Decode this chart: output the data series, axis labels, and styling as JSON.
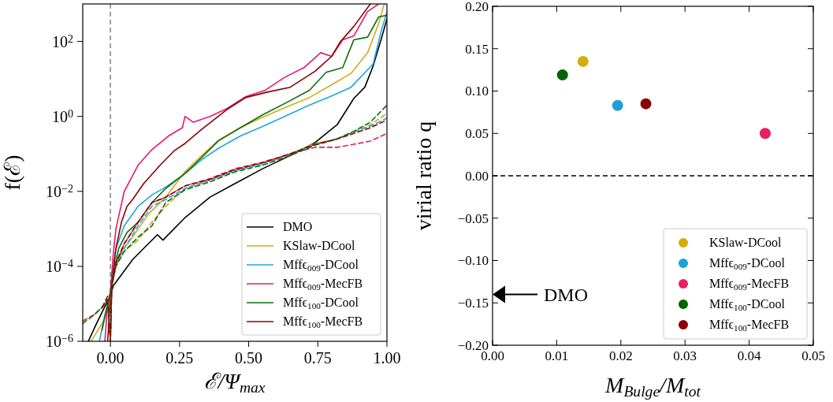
{
  "chart_data": [
    {
      "type": "line",
      "xlabel": "ℰ/Ψ$_{max}$",
      "ylabel": "f(ℰ)",
      "xlim": [
        -0.1,
        1.0
      ],
      "ylim": [
        1e-06,
        1000
      ],
      "log": "y",
      "legend": "bottom right",
      "grid": false,
      "xticks": [
        {
          "value": 0,
          "label": "0.00"
        },
        {
          "value": 0.25,
          "label": "0.25"
        },
        {
          "value": 0.5,
          "label": "0.50"
        },
        {
          "value": 0.75,
          "label": "0.75"
        },
        {
          "value": 1,
          "label": "1.00"
        }
      ],
      "yticks": [
        {
          "value": 1e-06,
          "label": "10$^{−6}$"
        },
        {
          "value": 0.0001,
          "label": "10$^{−4}$"
        },
        {
          "value": 0.01,
          "label": "10$^{−2}$"
        },
        {
          "value": 1,
          "label": "10$^{0}$"
        },
        {
          "value": 100,
          "label": "10$^{2}$"
        }
      ],
      "ref_lines": [
        {
          "axis": "x",
          "value": 0,
          "color": "#808080",
          "line_style": "dashed"
        }
      ],
      "series": [
        {
          "name": "DMO",
          "color": "#000000",
          "x": [
            -0.08,
            -0.05,
            -0.01,
            0.0,
            0.01,
            0.04,
            0.08,
            0.12,
            0.17,
            0.19,
            0.27,
            0.36,
            0.45,
            0.55,
            0.65,
            0.74,
            0.82,
            0.88,
            0.92,
            0.95,
            0.98,
            1.0
          ],
          "values": [
            1e-06,
            3e-06,
            1.2e-05,
            1.5e-05,
            3e-05,
            6e-05,
            0.00015,
            0.0003,
            0.0007,
            0.0005,
            0.002,
            0.007,
            0.016,
            0.04,
            0.09,
            0.2,
            0.6,
            3,
            6,
            22,
            120,
            400
          ]
        },
        {
          "name": "KSlaw-DCool",
          "color": "#d4aa1e",
          "x": [
            -0.07,
            -0.03,
            -0.005,
            0.0,
            0.01,
            0.04,
            0.08,
            0.14,
            0.2,
            0.27,
            0.33,
            0.39,
            0.47,
            0.55,
            0.63,
            0.72,
            0.8,
            0.87,
            0.93,
            0.97,
            0.99
          ],
          "values": [
            1e-06,
            3e-06,
            8e-06,
            2e-05,
            6e-05,
            0.00025,
            0.0006,
            0.0026,
            0.007,
            0.034,
            0.09,
            0.23,
            0.5,
            0.95,
            1.7,
            3.2,
            7,
            14,
            50,
            300,
            1000
          ]
        },
        {
          "name": "Mffϵ$_{009}$-DCool",
          "color": "#1ea8d8",
          "x": [
            -0.04,
            -0.02,
            0.0,
            0.005,
            0.02,
            0.05,
            0.1,
            0.15,
            0.2,
            0.27,
            0.33,
            0.39,
            0.47,
            0.55,
            0.63,
            0.72,
            0.8,
            0.87,
            0.95,
            0.98,
            1.0
          ],
          "values": [
            1e-06,
            5e-06,
            2e-05,
            5e-05,
            0.0003,
            0.0012,
            0.004,
            0.008,
            0.013,
            0.03,
            0.07,
            0.14,
            0.3,
            0.54,
            1.0,
            2,
            3.5,
            6,
            25,
            200,
            600
          ]
        },
        {
          "name": "Mffϵ$_{009}$-MecFB",
          "color": "#e6196a",
          "x": [
            -0.02,
            -0.01,
            0.0,
            0.01,
            0.02,
            0.05,
            0.1,
            0.15,
            0.21,
            0.26,
            0.27,
            0.3,
            0.36,
            0.42,
            0.49,
            0.56,
            0.63,
            0.7,
            0.76,
            0.8,
            0.84,
            0.88,
            0.93,
            0.97
          ],
          "values": [
            1e-06,
            1e-05,
            2e-05,
            0.0002,
            0.001,
            0.01,
            0.05,
            0.13,
            0.3,
            0.5,
            1.0,
            0.7,
            1.0,
            1.6,
            3.4,
            5,
            11,
            20,
            50,
            40,
            110,
            140,
            630,
            1000
          ]
        },
        {
          "name": "Mffϵ$_{100}$-DCool",
          "color": "#0b6e0b",
          "x": [
            -0.03,
            -0.01,
            0.0,
            0.01,
            0.03,
            0.06,
            0.1,
            0.15,
            0.2,
            0.27,
            0.33,
            0.39,
            0.47,
            0.55,
            0.63,
            0.72,
            0.78,
            0.84,
            0.88,
            0.93,
            0.97,
            1.0
          ],
          "values": [
            2e-06,
            1e-05,
            2e-05,
            6e-05,
            0.0003,
            0.0008,
            0.0015,
            0.005,
            0.012,
            0.03,
            0.08,
            0.22,
            0.5,
            1.1,
            2.2,
            5,
            15,
            20,
            110,
            130,
            450,
            500
          ]
        },
        {
          "name": "Mffϵ$_{100}$-MecFB",
          "color": "#8b0000",
          "x": [
            -0.01,
            0.0,
            0.005,
            0.02,
            0.04,
            0.06,
            0.08,
            0.12,
            0.18,
            0.23,
            0.27,
            0.33,
            0.42,
            0.49,
            0.57,
            0.65,
            0.74,
            0.8,
            0.83,
            0.88,
            0.94
          ],
          "values": [
            1e-06,
            1.5e-05,
            3e-05,
            0.0003,
            0.0015,
            0.004,
            0.006,
            0.016,
            0.05,
            0.12,
            0.19,
            0.45,
            1.5,
            3.2,
            4.5,
            6,
            16,
            40,
            95,
            250,
            1000
          ]
        },
        {
          "color": "#d4aa1e",
          "line_style": "dashed",
          "x": [
            -0.1,
            -0.06,
            -0.03,
            -0.01,
            0.0,
            0.005,
            0.02,
            0.05,
            0.1,
            0.15,
            0.2,
            0.27,
            0.36,
            0.45,
            0.55,
            0.65,
            0.74,
            0.82,
            0.88,
            0.94,
            1.0
          ],
          "values": [
            3.5e-06,
            5e-06,
            8e-06,
            1.3e-05,
            1e-06,
            3e-05,
            0.0001,
            0.00025,
            0.0005,
            0.0015,
            0.004,
            0.012,
            0.02,
            0.035,
            0.055,
            0.1,
            0.19,
            0.25,
            0.4,
            0.6,
            1.2
          ]
        },
        {
          "color": "#1ea8d8",
          "line_style": "dashed",
          "x": [
            0.0,
            0.005,
            0.02,
            0.05,
            0.1,
            0.15,
            0.2,
            0.27,
            0.36,
            0.45,
            0.55,
            0.65,
            0.74,
            0.82,
            0.88,
            0.94,
            1.0
          ],
          "values": [
            1e-06,
            3e-05,
            0.00012,
            0.0003,
            0.0012,
            0.004,
            0.006,
            0.012,
            0.02,
            0.036,
            0.055,
            0.1,
            0.18,
            0.25,
            0.38,
            0.55,
            0.9
          ]
        },
        {
          "color": "#e6196a",
          "line_style": "dashed",
          "x": [
            -0.1,
            -0.06,
            -0.03,
            -0.01,
            0.0,
            0.005,
            0.02,
            0.05,
            0.1,
            0.15,
            0.2,
            0.27,
            0.36,
            0.45,
            0.55,
            0.65,
            0.74,
            0.82,
            0.88,
            0.94,
            1.0
          ],
          "values": [
            3.5e-06,
            5e-06,
            8e-06,
            1.3e-05,
            1e-06,
            3e-05,
            0.00012,
            0.0004,
            0.0015,
            0.005,
            0.007,
            0.014,
            0.022,
            0.04,
            0.06,
            0.1,
            0.15,
            0.15,
            0.18,
            0.22,
            0.35
          ]
        },
        {
          "color": "#0b6e0b",
          "line_style": "dashed",
          "x": [
            -0.1,
            -0.06,
            -0.03,
            -0.01,
            0.0,
            0.005,
            0.02,
            0.05,
            0.1,
            0.15,
            0.2,
            0.27,
            0.36,
            0.45,
            0.55,
            0.65,
            0.74,
            0.82,
            0.88,
            0.94,
            1.0
          ],
          "values": [
            3e-06,
            5e-06,
            8e-06,
            1.3e-05,
            1e-06,
            3e-05,
            0.0001,
            0.00025,
            0.0006,
            0.0012,
            0.005,
            0.011,
            0.018,
            0.033,
            0.05,
            0.09,
            0.17,
            0.25,
            0.4,
            0.7,
            2
          ]
        },
        {
          "color": "#8b0000",
          "line_style": "dashed",
          "x": [
            -0.03,
            -0.01,
            0.0,
            0.005,
            0.02,
            0.05,
            0.1,
            0.15,
            0.2,
            0.27,
            0.36,
            0.45,
            0.55,
            0.65,
            0.74,
            0.82,
            0.88,
            0.94,
            1.0
          ],
          "values": [
            8e-06,
            1.6e-05,
            1e-06,
            3e-05,
            0.00012,
            0.0004,
            0.0015,
            0.005,
            0.007,
            0.014,
            0.021,
            0.038,
            0.058,
            0.1,
            0.18,
            0.25,
            0.35,
            0.5,
            0.8
          ]
        }
      ]
    },
    {
      "type": "scatter",
      "xlabel": "M$_{Bulge}$/M$_{tot}$",
      "ylabel": "virial ratio q",
      "xlim": [
        0,
        0.05
      ],
      "ylim": [
        -0.2,
        0.2
      ],
      "legend": "bottom right",
      "grid": false,
      "marker": "circle",
      "xticks": [
        {
          "value": 0,
          "label": "0.00"
        },
        {
          "value": 0.01,
          "label": "0.01"
        },
        {
          "value": 0.02,
          "label": "0.02"
        },
        {
          "value": 0.03,
          "label": "0.03"
        },
        {
          "value": 0.04,
          "label": "0.04"
        },
        {
          "value": 0.05,
          "label": "0.05"
        }
      ],
      "yticks": [
        {
          "value": -0.2,
          "label": "−0.20"
        },
        {
          "value": -0.15,
          "label": "−0.15"
        },
        {
          "value": -0.1,
          "label": "−0.10"
        },
        {
          "value": -0.05,
          "label": "−0.05"
        },
        {
          "value": 0,
          "label": "0.00"
        },
        {
          "value": 0.05,
          "label": "0.05"
        },
        {
          "value": 0.1,
          "label": "0.10"
        },
        {
          "value": 0.15,
          "label": "0.15"
        },
        {
          "value": 0.2,
          "label": "0.20"
        }
      ],
      "ref_lines": [
        {
          "axis": "y",
          "value": 0,
          "color": "#000000",
          "line_style": "dashed"
        }
      ],
      "annotations": [
        "DMO"
      ],
      "series": [
        {
          "name": "KSlaw-DCool",
          "color": "#d4ac0d",
          "x": [
            0.0141
          ],
          "values": [
            0.135
          ]
        },
        {
          "name": "Mffϵ$_{009}$-DCool",
          "color": "#1ba1d8",
          "x": [
            0.0195
          ],
          "values": [
            0.083
          ]
        },
        {
          "name": "Mffϵ$_{009}$-MecFB",
          "color": "#e91e63",
          "x": [
            0.0425
          ],
          "values": [
            0.05
          ]
        },
        {
          "name": "Mffϵ$_{100}$-DCool",
          "color": "#006400",
          "x": [
            0.0109
          ],
          "values": [
            0.119
          ]
        },
        {
          "name": "Mffϵ$_{100}$-MecFB",
          "color": "#8b0000",
          "x": [
            0.0239
          ],
          "values": [
            0.085
          ]
        }
      ]
    }
  ]
}
